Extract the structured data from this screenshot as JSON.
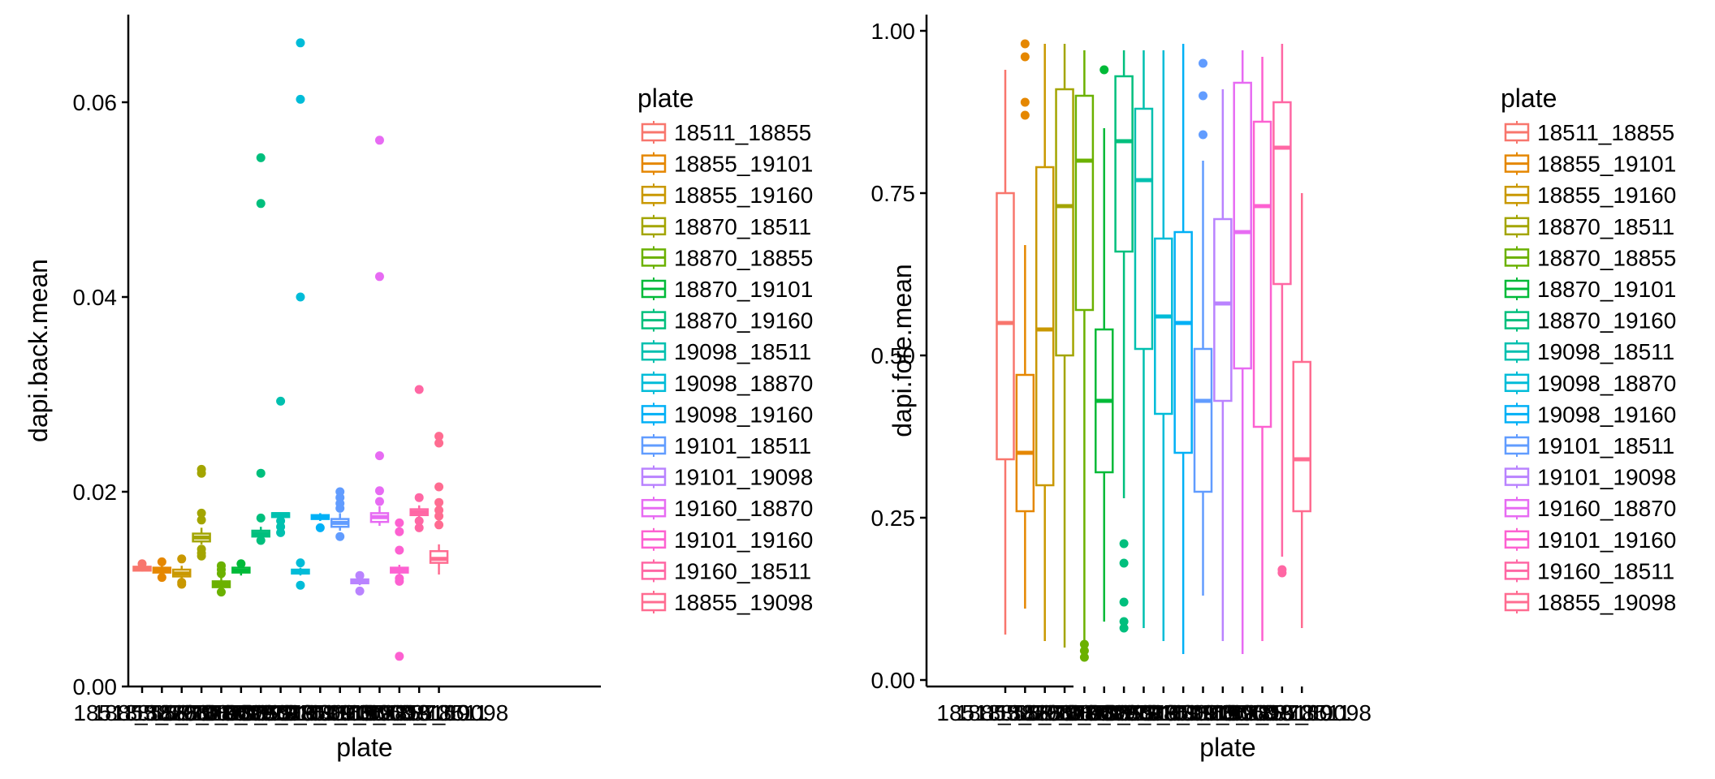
{
  "colors": [
    "#F8766D",
    "#E58700",
    "#C99800",
    "#A3A500",
    "#6BB100",
    "#00BA38",
    "#00BF7D",
    "#00C0AF",
    "#00BCD8",
    "#00B0F6",
    "#619CFF",
    "#B983FF",
    "#E76BF3",
    "#FD61D1",
    "#FF67A4",
    "#FF6C91"
  ],
  "chart_data": [
    {
      "type": "box",
      "xlabel": "plate",
      "ylabel": "dapi.back.mean",
      "ylim": [
        0,
        0.069
      ],
      "yticks": [
        0.0,
        0.02,
        0.04,
        0.06
      ],
      "ytick_labels": [
        "0.00",
        "0.02",
        "0.04",
        "0.06"
      ],
      "categories": [
        "18511_18855",
        "18855_19101",
        "18855_19160",
        "18870_18511",
        "18870_18855",
        "18870_19101",
        "18870_19160",
        "19098_18511",
        "19098_18870",
        "19098_19160",
        "19101_18511",
        "19101_19098",
        "19160_18870",
        "19101_19160",
        "19160_18511",
        "18855_19098"
      ],
      "legend_title": "plate",
      "boxes": [
        {
          "min": 0.0118,
          "q1": 0.0119,
          "median": 0.0121,
          "q3": 0.0123,
          "max": 0.0124,
          "outliers": [
            0.0126
          ]
        },
        {
          "min": 0.0114,
          "q1": 0.0117,
          "median": 0.012,
          "q3": 0.0122,
          "max": 0.0125,
          "outliers": [
            0.0112,
            0.0128
          ]
        },
        {
          "min": 0.011,
          "q1": 0.0113,
          "median": 0.0116,
          "q3": 0.012,
          "max": 0.0124,
          "outliers": [
            0.0105,
            0.0107,
            0.0131
          ]
        },
        {
          "min": 0.0146,
          "q1": 0.0149,
          "median": 0.0153,
          "q3": 0.0157,
          "max": 0.0163,
          "outliers": [
            0.0134,
            0.0137,
            0.0141,
            0.0171,
            0.0178,
            0.0219,
            0.0223
          ]
        },
        {
          "min": 0.01,
          "q1": 0.0102,
          "median": 0.0105,
          "q3": 0.0108,
          "max": 0.0112,
          "outliers": [
            0.0097,
            0.0116,
            0.012,
            0.0124
          ]
        },
        {
          "min": 0.0114,
          "q1": 0.0117,
          "median": 0.0119,
          "q3": 0.0122,
          "max": 0.0125,
          "outliers": [
            0.0126
          ]
        },
        {
          "min": 0.015,
          "q1": 0.0154,
          "median": 0.0157,
          "q3": 0.016,
          "max": 0.0164,
          "outliers": [
            0.015,
            0.0173,
            0.0219,
            0.0496,
            0.0543
          ]
        },
        {
          "min": 0.017,
          "q1": 0.0174,
          "median": 0.0177,
          "q3": 0.0178,
          "max": 0.0178,
          "outliers": [
            0.0158,
            0.0164,
            0.017,
            0.0293
          ]
        },
        {
          "min": 0.0114,
          "q1": 0.0116,
          "median": 0.0118,
          "q3": 0.012,
          "max": 0.0122,
          "outliers": [
            0.0104,
            0.0127,
            0.04,
            0.0603,
            0.0661
          ]
        },
        {
          "min": 0.017,
          "q1": 0.0172,
          "median": 0.0174,
          "q3": 0.0176,
          "max": 0.0178,
          "outliers": [
            0.0163
          ]
        },
        {
          "min": 0.016,
          "q1": 0.0164,
          "median": 0.0168,
          "q3": 0.0172,
          "max": 0.0178,
          "outliers": [
            0.0154,
            0.0183,
            0.0188,
            0.0194,
            0.02
          ]
        },
        {
          "min": 0.0104,
          "q1": 0.0106,
          "median": 0.0108,
          "q3": 0.011,
          "max": 0.0112,
          "outliers": [
            0.0098,
            0.0114
          ]
        },
        {
          "min": 0.0165,
          "q1": 0.0169,
          "median": 0.0174,
          "q3": 0.0178,
          "max": 0.0185,
          "outliers": [
            0.019,
            0.0201,
            0.0237,
            0.0421,
            0.0561
          ]
        },
        {
          "min": 0.0114,
          "q1": 0.0117,
          "median": 0.012,
          "q3": 0.0122,
          "max": 0.0125,
          "outliers": [
            0.0031,
            0.0108,
            0.0111,
            0.014,
            0.0159,
            0.0168
          ]
        },
        {
          "min": 0.0173,
          "q1": 0.0176,
          "median": 0.0179,
          "q3": 0.0182,
          "max": 0.0186,
          "outliers": [
            0.0163,
            0.017,
            0.0194,
            0.0305
          ]
        },
        {
          "min": 0.0115,
          "q1": 0.0127,
          "median": 0.0131,
          "q3": 0.0139,
          "max": 0.0146,
          "outliers": [
            0.0166,
            0.0175,
            0.0181,
            0.0189,
            0.0205,
            0.025,
            0.0257
          ]
        }
      ]
    },
    {
      "type": "box",
      "xlabel": "plate",
      "ylabel": "dapi.fore.mean",
      "ylim": [
        -0.01,
        1.025
      ],
      "yticks": [
        0.0,
        0.25,
        0.5,
        0.75,
        1.0
      ],
      "ytick_labels": [
        "0.00",
        "0.25",
        "0.50",
        "0.75",
        "1.00"
      ],
      "categories": [
        "18511_18855",
        "18855_19101",
        "18855_19160",
        "18870_18511",
        "18870_18855",
        "18870_19101",
        "18870_19160",
        "19098_18511",
        "19098_18870",
        "19098_19160",
        "19101_18511",
        "19101_19098",
        "19160_18870",
        "19101_19160",
        "19160_18511",
        "18855_19098"
      ],
      "legend_title": "plate",
      "boxes": [
        {
          "min": 0.07,
          "q1": 0.34,
          "median": 0.55,
          "q3": 0.75,
          "max": 0.94,
          "outliers": []
        },
        {
          "min": 0.11,
          "q1": 0.26,
          "median": 0.35,
          "q3": 0.47,
          "max": 0.67,
          "outliers": [
            0.87,
            0.89,
            0.96,
            0.98
          ]
        },
        {
          "min": 0.06,
          "q1": 0.3,
          "median": 0.54,
          "q3": 0.79,
          "max": 0.98,
          "outliers": []
        },
        {
          "min": 0.05,
          "q1": 0.5,
          "median": 0.73,
          "q3": 0.91,
          "max": 0.98,
          "outliers": []
        },
        {
          "min": 0.06,
          "q1": 0.57,
          "median": 0.8,
          "q3": 0.9,
          "max": 0.97,
          "outliers": [
            0.035,
            0.045,
            0.055
          ]
        },
        {
          "min": 0.09,
          "q1": 0.32,
          "median": 0.43,
          "q3": 0.54,
          "max": 0.85,
          "outliers": [
            0.94
          ]
        },
        {
          "min": 0.28,
          "q1": 0.66,
          "median": 0.83,
          "q3": 0.93,
          "max": 0.97,
          "outliers": [
            0.08,
            0.09,
            0.12,
            0.18,
            0.21
          ]
        },
        {
          "min": 0.08,
          "q1": 0.51,
          "median": 0.77,
          "q3": 0.88,
          "max": 0.97,
          "outliers": []
        },
        {
          "min": 0.06,
          "q1": 0.41,
          "median": 0.56,
          "q3": 0.68,
          "max": 0.97,
          "outliers": []
        },
        {
          "min": 0.04,
          "q1": 0.35,
          "median": 0.55,
          "q3": 0.69,
          "max": 0.98,
          "outliers": []
        },
        {
          "min": 0.13,
          "q1": 0.29,
          "median": 0.43,
          "q3": 0.51,
          "max": 0.8,
          "outliers": [
            0.84,
            0.9,
            0.95
          ]
        },
        {
          "min": 0.06,
          "q1": 0.43,
          "median": 0.58,
          "q3": 0.71,
          "max": 0.91,
          "outliers": []
        },
        {
          "min": 0.04,
          "q1": 0.48,
          "median": 0.69,
          "q3": 0.92,
          "max": 0.97,
          "outliers": []
        },
        {
          "min": 0.06,
          "q1": 0.39,
          "median": 0.73,
          "q3": 0.86,
          "max": 0.96,
          "outliers": []
        },
        {
          "min": 0.19,
          "q1": 0.61,
          "median": 0.82,
          "q3": 0.89,
          "max": 0.98,
          "outliers": [
            0.165,
            0.17
          ]
        },
        {
          "min": 0.08,
          "q1": 0.26,
          "median": 0.34,
          "q3": 0.49,
          "max": 0.75,
          "outliers": []
        }
      ]
    }
  ]
}
